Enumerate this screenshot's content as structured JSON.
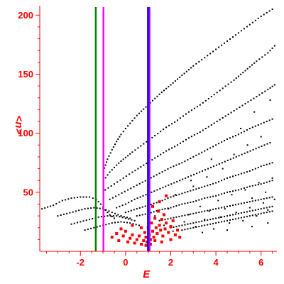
{
  "chart_data": {
    "type": "scatter",
    "title": "",
    "xlabel": "E",
    "ylabel": "<n>",
    "xlim": [
      -3.8,
      6.7
    ],
    "ylim": [
      0,
      208
    ],
    "x_ticks": [
      -2,
      0,
      2,
      4,
      6
    ],
    "y_ticks": [
      50,
      100,
      150,
      200
    ],
    "grid": false,
    "axis_color": "#ff0000",
    "vertical_lines": [
      {
        "x": -1.32,
        "color": "#008000"
      },
      {
        "x": -0.98,
        "color": "#ff00ff"
      },
      {
        "x": 0.99,
        "color": "#0000ff"
      },
      {
        "x": 1.06,
        "color": "#a000ff"
      }
    ],
    "series": [
      {
        "color": "#000000",
        "marker": "dot",
        "curves": [
          {
            "x": [
              -3.7,
              -3.2,
              -2.8,
              -2.4,
              -2.0,
              -1.6,
              -1.3,
              -1.1,
              -0.9,
              -0.7,
              -0.5
            ],
            "y": [
              36,
              39,
              43,
              45,
              46,
              46,
              44,
              40,
              35,
              31,
              28
            ]
          },
          {
            "x": [
              -3.0,
              -2.6,
              -2.2,
              -1.8,
              -1.4,
              -1.0,
              -0.6,
              -0.2,
              0.2
            ],
            "y": [
              30,
              32,
              34,
              36,
              37,
              36,
              33,
              30,
              28
            ]
          },
          {
            "x": [
              -2.4,
              -2.0,
              -1.6,
              -1.2,
              -0.8,
              -0.4,
              0.0,
              0.4
            ],
            "y": [
              23,
              25,
              27,
              29,
              30,
              30,
              28,
              26
            ]
          },
          {
            "x": [
              -1.8,
              -1.4,
              -1.0,
              -0.6,
              -0.2,
              0.2,
              0.6
            ],
            "y": [
              18,
              20,
              22,
              24,
              25,
              24,
              22
            ]
          },
          {
            "x": [
              -0.98,
              -0.8,
              -0.6,
              -0.4,
              -0.2,
              0.0,
              0.5,
              1.0,
              1.5,
              2.0,
              2.5,
              3.0,
              3.5,
              4.0,
              4.5,
              5.0,
              5.5,
              6.0,
              6.5
            ],
            "y": [
              68,
              78,
              86,
              93,
              99,
              104,
              115,
              124,
              133,
              141,
              149,
              157,
              164,
              171,
              178,
              185,
              192,
              199,
              205
            ]
          },
          {
            "x": [
              -0.98,
              -0.7,
              -0.4,
              -0.1,
              0.3,
              0.8,
              1.3,
              1.8,
              2.3,
              2.8,
              3.3,
              3.8,
              4.3,
              4.8,
              5.3,
              5.8,
              6.3,
              6.6
            ],
            "y": [
              60,
              67,
              73,
              78,
              84,
              91,
              98,
              105,
              111,
              118,
              124,
              131,
              138,
              145,
              153,
              161,
              168,
              174
            ]
          },
          {
            "x": [
              -0.9,
              -0.5,
              -0.1,
              0.3,
              0.8,
              1.3,
              1.8,
              2.3,
              2.8,
              3.3,
              3.8,
              4.3,
              4.8,
              5.3,
              5.8,
              6.3,
              6.6
            ],
            "y": [
              52,
              57,
              62,
              67,
              73,
              79,
              85,
              90,
              96,
              101,
              107,
              113,
              119,
              125,
              131,
              137,
              141
            ]
          },
          {
            "x": [
              -0.7,
              -0.3,
              0.1,
              0.5,
              1.0,
              1.5,
              2.0,
              2.5,
              3.0,
              3.5,
              4.0,
              4.5,
              5.0,
              5.5,
              6.0,
              6.5
            ],
            "y": [
              44,
              48,
              52,
              56,
              61,
              66,
              71,
              75,
              80,
              85,
              90,
              95,
              99,
              104,
              108,
              112
            ]
          },
          {
            "x": [
              -0.4,
              0.0,
              0.4,
              0.9,
              1.4,
              1.9,
              2.4,
              2.9,
              3.4,
              3.9,
              4.4,
              4.9,
              5.4,
              5.9,
              6.4
            ],
            "y": [
              37,
              40,
              44,
              48,
              52,
              56,
              60,
              64,
              68,
              72,
              76,
              80,
              84,
              88,
              92
            ]
          },
          {
            "x": [
              0.0,
              0.5,
              1.0,
              1.5,
              2.0,
              2.5,
              3.0,
              3.5,
              4.0,
              4.5,
              5.0,
              5.5,
              6.0,
              6.5
            ],
            "y": [
              33,
              36,
              39,
              42,
              46,
              49,
              52,
              55,
              58,
              62,
              65,
              68,
              72,
              75
            ]
          },
          {
            "x": [
              0.5,
              1.0,
              1.5,
              2.0,
              2.5,
              3.0,
              3.5,
              4.0,
              4.5,
              5.0,
              5.5,
              6.0,
              6.5
            ],
            "y": [
              30,
              32,
              35,
              37,
              40,
              42,
              45,
              47,
              50,
              52,
              55,
              57,
              60
            ]
          },
          {
            "x": [
              1.5,
              2.0,
              2.5,
              3.0,
              3.5,
              4.0,
              4.5,
              5.0,
              5.5,
              6.0,
              6.5
            ],
            "y": [
              26,
              28,
              30,
              32,
              34,
              36,
              38,
              40,
              42,
              44,
              46
            ]
          },
          {
            "x": [
              2.0,
              2.5,
              3.0,
              3.5,
              4.0,
              4.5,
              5.0,
              5.5,
              6.0,
              6.5
            ],
            "y": [
              20,
              22,
              24,
              26,
              28,
              30,
              32,
              34,
              36,
              38
            ]
          },
          {
            "x": [
              2.5,
              3.0,
              3.5,
              4.0,
              4.5,
              5.0,
              5.5,
              6.0,
              6.5
            ],
            "y": [
              18,
              20,
              22,
              24,
              26,
              28,
              30,
              32,
              34
            ]
          }
        ],
        "points": [
          {
            "x": 2.6,
            "y": 25
          },
          {
            "x": 2.8,
            "y": 31
          },
          {
            "x": 3.1,
            "y": 21
          },
          {
            "x": 3.3,
            "y": 38
          },
          {
            "x": 3.5,
            "y": 27
          },
          {
            "x": 3.7,
            "y": 34
          },
          {
            "x": 3.9,
            "y": 19
          },
          {
            "x": 4.1,
            "y": 43
          },
          {
            "x": 4.2,
            "y": 29
          },
          {
            "x": 4.4,
            "y": 36
          },
          {
            "x": 4.6,
            "y": 24
          },
          {
            "x": 4.7,
            "y": 48
          },
          {
            "x": 4.9,
            "y": 33
          },
          {
            "x": 5.0,
            "y": 40
          },
          {
            "x": 5.2,
            "y": 26
          },
          {
            "x": 5.3,
            "y": 52
          },
          {
            "x": 5.5,
            "y": 37
          },
          {
            "x": 5.6,
            "y": 45
          },
          {
            "x": 5.8,
            "y": 30
          },
          {
            "x": 5.9,
            "y": 58
          },
          {
            "x": 6.1,
            "y": 41
          },
          {
            "x": 6.2,
            "y": 50
          },
          {
            "x": 6.3,
            "y": 35
          },
          {
            "x": 6.5,
            "y": 62
          },
          {
            "x": 6.6,
            "y": 44
          },
          {
            "x": 3.0,
            "y": 55
          },
          {
            "x": 3.6,
            "y": 63
          },
          {
            "x": 4.3,
            "y": 70
          },
          {
            "x": 4.8,
            "y": 82
          },
          {
            "x": 5.4,
            "y": 90
          },
          {
            "x": 6.0,
            "y": 97
          },
          {
            "x": 2.2,
            "y": 48
          },
          {
            "x": 2.9,
            "y": 60
          },
          {
            "x": 3.8,
            "y": 78
          },
          {
            "x": 5.1,
            "y": 104
          },
          {
            "x": 5.7,
            "y": 118
          },
          {
            "x": 6.4,
            "y": 128
          },
          {
            "x": 1.7,
            "y": 22
          },
          {
            "x": 2.1,
            "y": 17
          },
          {
            "x": 1.3,
            "y": 30
          },
          {
            "x": 3.4,
            "y": 16
          },
          {
            "x": 4.5,
            "y": 18
          },
          {
            "x": 5.6,
            "y": 21
          },
          {
            "x": 6.3,
            "y": 24
          },
          {
            "x": 1.9,
            "y": 36
          }
        ]
      },
      {
        "color": "#ff0000",
        "marker": "square",
        "points": [
          {
            "x": -0.6,
            "y": 12
          },
          {
            "x": -0.4,
            "y": 15
          },
          {
            "x": -0.3,
            "y": 9
          },
          {
            "x": -0.1,
            "y": 13
          },
          {
            "x": 0.0,
            "y": 17
          },
          {
            "x": 0.1,
            "y": 8
          },
          {
            "x": 0.2,
            "y": 11
          },
          {
            "x": 0.3,
            "y": 14
          },
          {
            "x": 0.4,
            "y": 7
          },
          {
            "x": 0.5,
            "y": 10
          },
          {
            "x": 0.6,
            "y": 13
          },
          {
            "x": 0.7,
            "y": 6
          },
          {
            "x": 0.8,
            "y": 9
          },
          {
            "x": 0.85,
            "y": 16
          },
          {
            "x": 0.9,
            "y": 12
          },
          {
            "x": 0.95,
            "y": 8
          },
          {
            "x": 1.0,
            "y": 20
          },
          {
            "x": 1.05,
            "y": 14
          },
          {
            "x": 1.1,
            "y": 10
          },
          {
            "x": 1.15,
            "y": 24
          },
          {
            "x": 1.2,
            "y": 17
          },
          {
            "x": 1.25,
            "y": 12
          },
          {
            "x": 1.3,
            "y": 28
          },
          {
            "x": 1.35,
            "y": 20
          },
          {
            "x": 1.4,
            "y": 15
          },
          {
            "x": 1.45,
            "y": 34
          },
          {
            "x": 1.5,
            "y": 22
          },
          {
            "x": 1.55,
            "y": 18
          },
          {
            "x": 1.6,
            "y": 27
          },
          {
            "x": 1.65,
            "y": 13
          },
          {
            "x": 1.7,
            "y": 31
          },
          {
            "x": 1.75,
            "y": 19
          },
          {
            "x": 1.8,
            "y": 24
          },
          {
            "x": 1.9,
            "y": 16
          },
          {
            "x": 2.0,
            "y": 21
          },
          {
            "x": 2.1,
            "y": 26
          },
          {
            "x": 2.2,
            "y": 14
          },
          {
            "x": 2.3,
            "y": 18
          },
          {
            "x": 2.4,
            "y": 12
          },
          {
            "x": 1.8,
            "y": 47
          },
          {
            "x": 1.2,
            "y": 38
          },
          {
            "x": 1.5,
            "y": 42
          },
          {
            "x": 0.7,
            "y": 20
          },
          {
            "x": 0.3,
            "y": 22
          },
          {
            "x": -0.2,
            "y": 19
          },
          {
            "x": 1.3,
            "y": 9
          },
          {
            "x": 1.6,
            "y": 8
          },
          {
            "x": 0.9,
            "y": 5
          },
          {
            "x": 1.1,
            "y": 6
          },
          {
            "x": 2.0,
            "y": 10
          }
        ]
      }
    ]
  }
}
